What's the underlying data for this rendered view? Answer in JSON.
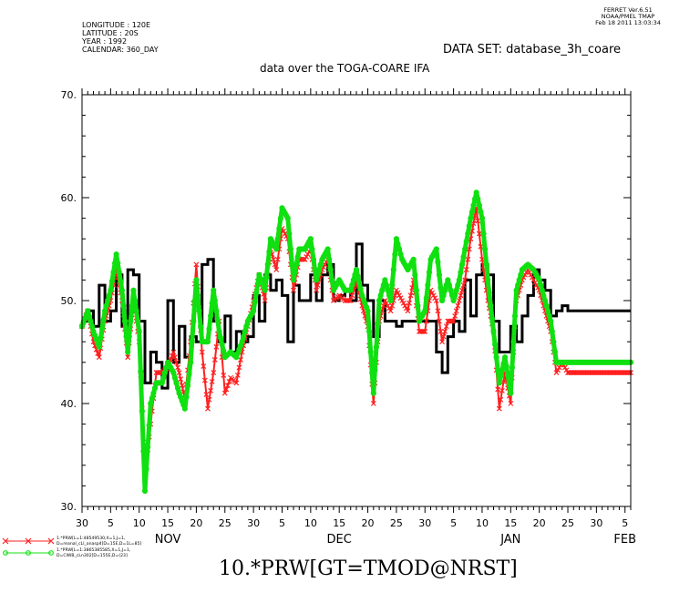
{
  "header": {
    "info_lines": [
      "LONGITUDE : 120E",
      "LATITUDE : 20S",
      "YEAR : 1992",
      "CALENDAR: 360_DAY"
    ],
    "stamp_lines": [
      "FERRET  Ver.6.51",
      "NOAA/PMEL TMAP",
      "Feb 18 2011 13:03:34"
    ],
    "dataset": "DATA SET: database_3h_coare"
  },
  "legend": [
    {
      "line1": "1.*PRW[L=1:48549530,X=1,J=1,",
      "line2": "D=reanal_cLl_anasp4]D=15E,D=1L=85]",
      "color": "#ff2020",
      "marker": "x"
    },
    {
      "line1": "1.*PRW[L=1:3865385585,X=1,J=1,",
      "line2": "D=ClWB_cLn302]D=155E,D=(23]",
      "color": "#10e010",
      "marker": "o"
    }
  ],
  "chart_data": {
    "type": "line",
    "title": "data over the TOGA-COARE IFA",
    "xlabel": "10.*PRW[GT=TMOD@NRST]",
    "ylabel": "",
    "ylim": [
      30,
      70
    ],
    "yticks": [
      30,
      40,
      50,
      60,
      70
    ],
    "ytick_labels": [
      "30.",
      "40.",
      "50.",
      "60.",
      "70."
    ],
    "xlim": [
      0,
      96
    ],
    "xticks": [
      0,
      5,
      10,
      15,
      20,
      25,
      30,
      35,
      40,
      45,
      50,
      55,
      60,
      65,
      70,
      75,
      80,
      85,
      90,
      95,
      96
    ],
    "xtick_labels": [
      "30",
      "5",
      "10",
      "15",
      "20",
      "25",
      "30",
      "5",
      "10",
      "15",
      "20",
      "25",
      "30",
      "5",
      "10",
      "15",
      "20",
      "25",
      "30",
      "5",
      ""
    ],
    "month_labels": [
      {
        "label": "NOV",
        "x": 15
      },
      {
        "label": "DEC",
        "x": 45
      },
      {
        "label": "JAN",
        "x": 75
      },
      {
        "label": "FEB",
        "x": 95
      }
    ],
    "grid": false,
    "series": [
      {
        "type": "step",
        "color": "#000000",
        "x": [
          0,
          1,
          2,
          3,
          4,
          5,
          6,
          7,
          8,
          9,
          10,
          11,
          12,
          13,
          14,
          15,
          16,
          17,
          18,
          19,
          20,
          21,
          22,
          23,
          24,
          25,
          26,
          27,
          28,
          29,
          30,
          31,
          32,
          33,
          34,
          35,
          36,
          37,
          38,
          39,
          40,
          41,
          42,
          43,
          44,
          45,
          46,
          47,
          48,
          49,
          50,
          51,
          52,
          53,
          54,
          55,
          56,
          57,
          58,
          59,
          60,
          61,
          62,
          63,
          64,
          65,
          66,
          67,
          68,
          69,
          70,
          71,
          72,
          73,
          74,
          75,
          76,
          77,
          78,
          79,
          80,
          81,
          82,
          83,
          84,
          85,
          86,
          87,
          88,
          89,
          90,
          91,
          92,
          93,
          94,
          95,
          96
        ],
        "values": [
          48,
          49,
          47.5,
          51.5,
          48,
          49,
          52.5,
          47.5,
          53,
          52.5,
          48,
          42,
          45,
          44,
          41.5,
          50,
          44,
          47.5,
          44.5,
          46.5,
          46,
          53.5,
          54,
          48,
          46,
          48.5,
          45,
          47,
          46,
          46.5,
          50.5,
          48,
          52.5,
          51,
          52,
          50.5,
          46,
          51.5,
          50,
          50,
          52.5,
          50,
          52.5,
          53.5,
          50,
          50.5,
          51,
          50,
          55.5,
          51.5,
          50,
          46.5,
          50,
          48,
          48,
          47.5,
          48,
          48,
          48,
          48,
          48,
          48,
          45,
          43,
          46.5,
          48,
          47,
          52,
          48.5,
          52.5,
          53.5,
          52.5,
          48,
          45,
          45,
          47.5,
          46,
          48.5,
          50.5,
          53,
          52,
          51,
          48.5,
          49,
          49.5,
          49,
          49,
          49,
          49,
          49,
          49,
          49,
          49,
          49,
          49,
          49,
          49
        ]
      },
      {
        "type": "line",
        "color": "#ff2020",
        "marker": "x",
        "x": [
          0,
          1,
          2,
          3,
          4,
          5,
          6,
          7,
          8,
          9,
          10,
          11,
          12,
          13,
          14,
          15,
          16,
          17,
          18,
          19,
          20,
          21,
          22,
          23,
          24,
          25,
          26,
          27,
          28,
          29,
          30,
          31,
          32,
          33,
          34,
          35,
          36,
          37,
          38,
          39,
          40,
          41,
          42,
          43,
          44,
          45,
          46,
          47,
          48,
          49,
          50,
          51,
          52,
          53,
          54,
          55,
          56,
          57,
          58,
          59,
          60,
          61,
          62,
          63,
          64,
          65,
          66,
          67,
          68,
          69,
          70,
          71,
          72,
          73,
          74,
          75,
          76,
          77,
          78,
          79,
          80,
          81,
          82,
          83,
          84,
          85,
          86,
          87,
          88,
          89,
          90,
          91,
          92,
          93,
          94,
          95,
          96
        ],
        "values": [
          47.5,
          49,
          46,
          44.5,
          48,
          50,
          53,
          50,
          44.5,
          50,
          46,
          33,
          38,
          43,
          43,
          43.5,
          45,
          43,
          40.5,
          46,
          53.5,
          45,
          39.5,
          43,
          48,
          41,
          42.5,
          42,
          45,
          47.5,
          50,
          52.5,
          50,
          55,
          53,
          57,
          56,
          51,
          54,
          54,
          55,
          51,
          53,
          54,
          50,
          50.5,
          50,
          50,
          52,
          49.5,
          47.5,
          40,
          48,
          50,
          49,
          51,
          50,
          49,
          52,
          47,
          47,
          51,
          50,
          46,
          48,
          48,
          50,
          52,
          56,
          59,
          54,
          50,
          47,
          39.5,
          43,
          40,
          50,
          52,
          53,
          52,
          51,
          49,
          47,
          43,
          44,
          43,
          43,
          43,
          43,
          43,
          43,
          43,
          43,
          43,
          43,
          43,
          43
        ]
      },
      {
        "type": "line",
        "color": "#10e010",
        "marker": "o",
        "x": [
          0,
          1,
          2,
          3,
          4,
          5,
          6,
          7,
          8,
          9,
          10,
          11,
          12,
          13,
          14,
          15,
          16,
          17,
          18,
          19,
          20,
          21,
          22,
          23,
          24,
          25,
          26,
          27,
          28,
          29,
          30,
          31,
          32,
          33,
          34,
          35,
          36,
          37,
          38,
          39,
          40,
          41,
          42,
          43,
          44,
          45,
          46,
          47,
          48,
          49,
          50,
          51,
          52,
          53,
          54,
          55,
          56,
          57,
          58,
          59,
          60,
          61,
          62,
          63,
          64,
          65,
          66,
          67,
          68,
          69,
          70,
          71,
          72,
          73,
          74,
          75,
          76,
          77,
          78,
          79,
          80,
          81,
          82,
          83,
          84,
          85,
          86,
          87,
          88,
          89,
          90,
          91,
          92,
          93,
          94,
          95,
          96
        ],
        "values": [
          47.5,
          49,
          47,
          45.5,
          49,
          51,
          54.5,
          51,
          45,
          51,
          47,
          31.5,
          40,
          42,
          42,
          44,
          43,
          41,
          39.5,
          44,
          52,
          46,
          46,
          51,
          47,
          44.5,
          45,
          44.5,
          46,
          48,
          49,
          52.5,
          51,
          56,
          55,
          59,
          58,
          52,
          55,
          55,
          56,
          52,
          54,
          55,
          51,
          52,
          51,
          51,
          53,
          50.5,
          49,
          41,
          50,
          52,
          50,
          56,
          54,
          53,
          54,
          48,
          49,
          54,
          55,
          50,
          52,
          50,
          52,
          55,
          58,
          60.5,
          58,
          52,
          47,
          42,
          44.5,
          41,
          51,
          53,
          53.5,
          53,
          52,
          50,
          48,
          44,
          44,
          44,
          44,
          44,
          44,
          44,
          44,
          44,
          44,
          44,
          44,
          44,
          44
        ]
      }
    ]
  }
}
